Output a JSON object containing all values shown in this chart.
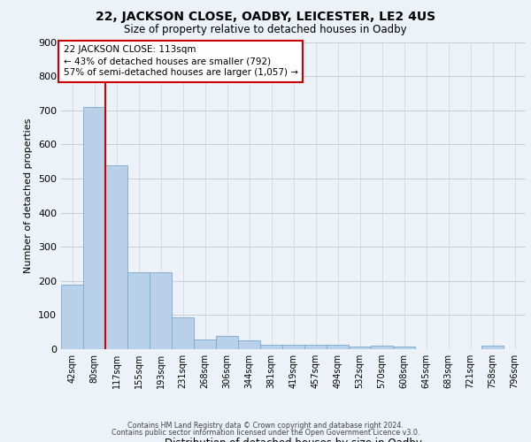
{
  "title_line1": "22, JACKSON CLOSE, OADBY, LEICESTER, LE2 4US",
  "title_line2": "Size of property relative to detached houses in Oadby",
  "xlabel": "Distribution of detached houses by size in Oadby",
  "ylabel": "Number of detached properties",
  "categories": [
    "42sqm",
    "80sqm",
    "117sqm",
    "155sqm",
    "193sqm",
    "231sqm",
    "268sqm",
    "306sqm",
    "344sqm",
    "381sqm",
    "419sqm",
    "457sqm",
    "494sqm",
    "532sqm",
    "570sqm",
    "608sqm",
    "645sqm",
    "683sqm",
    "721sqm",
    "758sqm",
    "796sqm"
  ],
  "values": [
    190,
    710,
    540,
    225,
    225,
    92,
    28,
    38,
    25,
    14,
    13,
    12,
    12,
    8,
    10,
    7,
    0,
    0,
    0,
    10,
    0
  ],
  "bar_color": "#b8d0e8",
  "bar_edge_color": "#7aaad0",
  "vline_x": 1.5,
  "vline_color": "#cc0000",
  "annotation_text": "22 JACKSON CLOSE: 113sqm\n← 43% of detached houses are smaller (792)\n57% of semi-detached houses are larger (1,057) →",
  "annotation_box_facecolor": "#ffffff",
  "annotation_box_edgecolor": "#cc0000",
  "ylim": [
    0,
    900
  ],
  "yticks": [
    0,
    100,
    200,
    300,
    400,
    500,
    600,
    700,
    800,
    900
  ],
  "footer_line1": "Contains HM Land Registry data © Crown copyright and database right 2024.",
  "footer_line2": "Contains public sector information licensed under the Open Government Licence v3.0.",
  "bg_color": "#edf1f8",
  "grid_color": "#c8ccd8",
  "title1_fontsize": 10,
  "title2_fontsize": 8.5,
  "ylabel_fontsize": 8,
  "xlabel_fontsize": 8.5,
  "tick_fontsize": 7,
  "annot_fontsize": 7.5,
  "footer_fontsize": 5.8
}
